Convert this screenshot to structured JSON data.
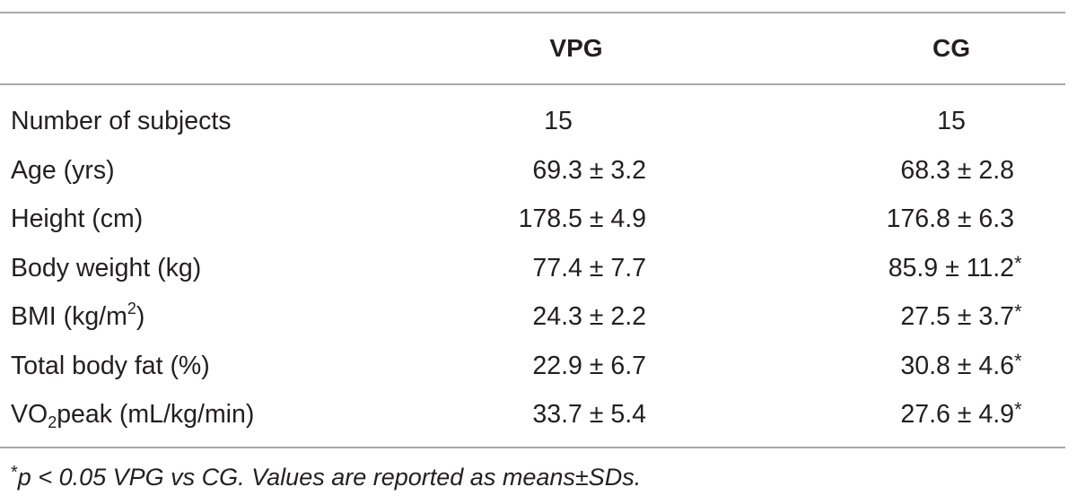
{
  "table": {
    "columns": {
      "group1": "VPG",
      "group2": "CG"
    },
    "rows": [
      {
        "label_main": "Number of subjects",
        "label_super": "",
        "label_sub": "",
        "label_tail": "",
        "vpg": "15",
        "cg": "15",
        "cg_mark": ""
      },
      {
        "label_main": "Age (yrs)",
        "label_super": "",
        "label_sub": "",
        "label_tail": "",
        "vpg": "69.3 ± 3.2",
        "cg": "68.3 ± 2.8",
        "cg_mark": ""
      },
      {
        "label_main": "Height (cm)",
        "label_super": "",
        "label_sub": "",
        "label_tail": "",
        "vpg": "178.5 ± 4.9",
        "cg": "176.8 ± 6.3",
        "cg_mark": ""
      },
      {
        "label_main": "Body weight (kg)",
        "label_super": "",
        "label_sub": "",
        "label_tail": "",
        "vpg": "77.4 ± 7.7",
        "cg": "85.9 ± 11.2",
        "cg_mark": "*"
      },
      {
        "label_main": "BMI (kg/m",
        "label_super": "2",
        "label_sub": "",
        "label_tail": ")",
        "vpg": "24.3 ± 2.2",
        "cg": "27.5 ± 3.7",
        "cg_mark": "*"
      },
      {
        "label_main": "Total body fat (%)",
        "label_super": "",
        "label_sub": "",
        "label_tail": "",
        "vpg": "22.9 ± 6.7",
        "cg": "30.8 ± 4.6",
        "cg_mark": "*"
      },
      {
        "label_main": "VO",
        "label_super": "",
        "label_sub": "2",
        "label_tail": "peak (mL/kg/min)",
        "vpg": "33.7 ± 5.4",
        "cg": "27.6 ± 4.9",
        "cg_mark": "*"
      }
    ],
    "footnote": {
      "mark": "*",
      "text": "p < 0.05 VPG vs CG. Values are reported as means±SDs."
    }
  }
}
